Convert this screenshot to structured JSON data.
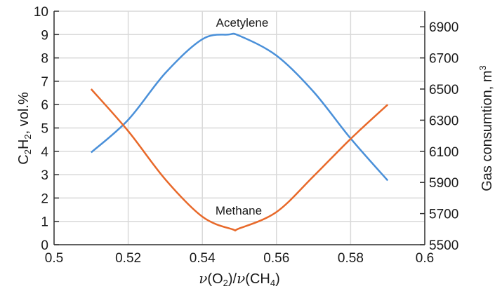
{
  "chart_data": {
    "type": "line",
    "xlabel": "ν(O2)/ν(CH4)",
    "ylabel": "C2H2, vol.%",
    "y2label": "Gas consumtion, m3",
    "xlim": [
      0.5,
      0.6
    ],
    "ylim": [
      0,
      10
    ],
    "y2lim": [
      5500,
      7000
    ],
    "grid": true,
    "x_ticks": [
      "0.5",
      "0.52",
      "0.54",
      "0.56",
      "0.58",
      "0.6"
    ],
    "y_ticks": [
      "0",
      "1",
      "2",
      "3",
      "4",
      "5",
      "6",
      "7",
      "8",
      "9",
      "10"
    ],
    "y2_ticks": [
      "5500",
      "5700",
      "5900",
      "6100",
      "6300",
      "6500",
      "6700",
      "6900"
    ],
    "series": [
      {
        "name": "Acetylene",
        "axis": "left",
        "color": "#4a90d9",
        "x": [
          0.51,
          0.52,
          0.53,
          0.54,
          0.547,
          0.55,
          0.56,
          0.57,
          0.58,
          0.59
        ],
        "y": [
          3.95,
          5.35,
          7.35,
          8.8,
          9.0,
          8.95,
          8.1,
          6.55,
          4.55,
          2.75
        ]
      },
      {
        "name": "Methane",
        "axis": "right",
        "color": "#e8692a",
        "x": [
          0.51,
          0.52,
          0.53,
          0.54,
          0.548,
          0.55,
          0.56,
          0.57,
          0.58,
          0.59
        ],
        "y": [
          6500,
          6230,
          5920,
          5680,
          5600,
          5605,
          5710,
          5940,
          6180,
          6400
        ]
      }
    ]
  }
}
